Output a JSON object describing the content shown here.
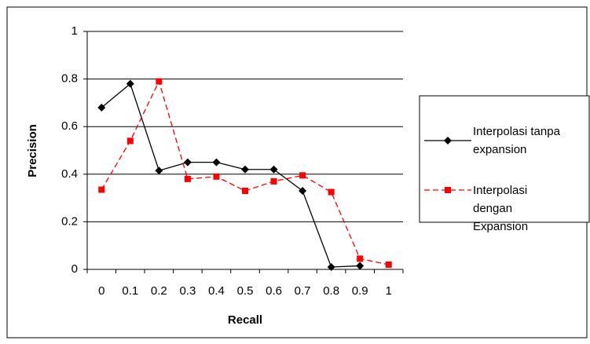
{
  "chart_data": {
    "type": "line",
    "x_label": "Recall",
    "y_label": "Precision",
    "categories": [
      "0",
      "0.1",
      "0.2",
      "0.3",
      "0.4",
      "0.5",
      "0.6",
      "0.7",
      "0.8",
      "0.9",
      "1"
    ],
    "series": [
      {
        "name": "Interpolasi tanpa expansion",
        "color": "#000000",
        "line_style": "solid",
        "marker": "diamond",
        "values": [
          0.68,
          0.78,
          0.415,
          0.45,
          0.45,
          0.42,
          0.42,
          0.33,
          0.01,
          0.015,
          null
        ]
      },
      {
        "name": "Interpolasi dengan Expansion",
        "color": "#ff0000",
        "line_style": "dashed",
        "marker": "square",
        "values": [
          0.335,
          0.54,
          0.79,
          0.38,
          0.39,
          0.33,
          0.37,
          0.395,
          0.325,
          0.045,
          0.02
        ]
      }
    ],
    "ylim": [
      0,
      1
    ],
    "yticks": [
      0,
      0.2,
      0.4,
      0.6,
      0.8,
      1
    ],
    "grid": true,
    "legend": "right"
  }
}
